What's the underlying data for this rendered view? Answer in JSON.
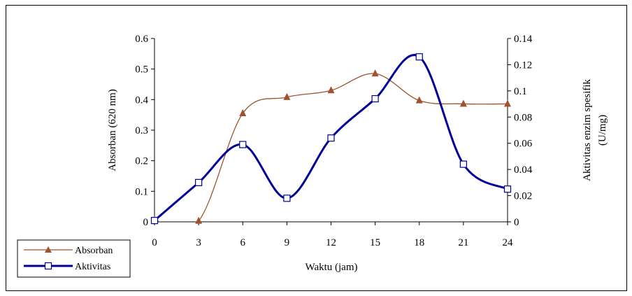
{
  "chart_data": {
    "type": "line",
    "x": [
      0,
      3,
      6,
      9,
      12,
      15,
      18,
      21,
      24
    ],
    "xlabel": "Waktu (jam)",
    "xlim": [
      0,
      24
    ],
    "x_ticks": [
      "0",
      "3",
      "6",
      "9",
      "12",
      "15",
      "18",
      "21",
      "24"
    ],
    "ylabel_left": "Absorban (620 nm)",
    "ylim_left": [
      0,
      0.6
    ],
    "y_ticks_left": [
      "0",
      "0.1",
      "0.2",
      "0.3",
      "0.4",
      "0.5",
      "0.6"
    ],
    "ylabel_right_line1": "Aktivitas enzim spesifik",
    "ylabel_right_line2": "(U/mg)",
    "ylim_right": [
      0,
      0.14
    ],
    "y_ticks_right": [
      "0",
      "0.02",
      "0.04",
      "0.06",
      "0.08",
      "0.1",
      "0.12",
      "0.14"
    ],
    "grid": false,
    "legend_position": "bottom-left",
    "series": [
      {
        "name": "Absorban",
        "axis": "left",
        "color": "#A0522D",
        "marker": "filled-triangle",
        "values": [
          0.005,
          0.003,
          0.355,
          0.408,
          0.43,
          0.485,
          0.397,
          0.386,
          0.386
        ]
      },
      {
        "name": "Aktivitas",
        "axis": "right",
        "color": "#000099",
        "marker": "open-square",
        "values": [
          0.001,
          0.03,
          0.059,
          0.018,
          0.064,
          0.094,
          0.126,
          0.044,
          0.025
        ]
      }
    ]
  }
}
